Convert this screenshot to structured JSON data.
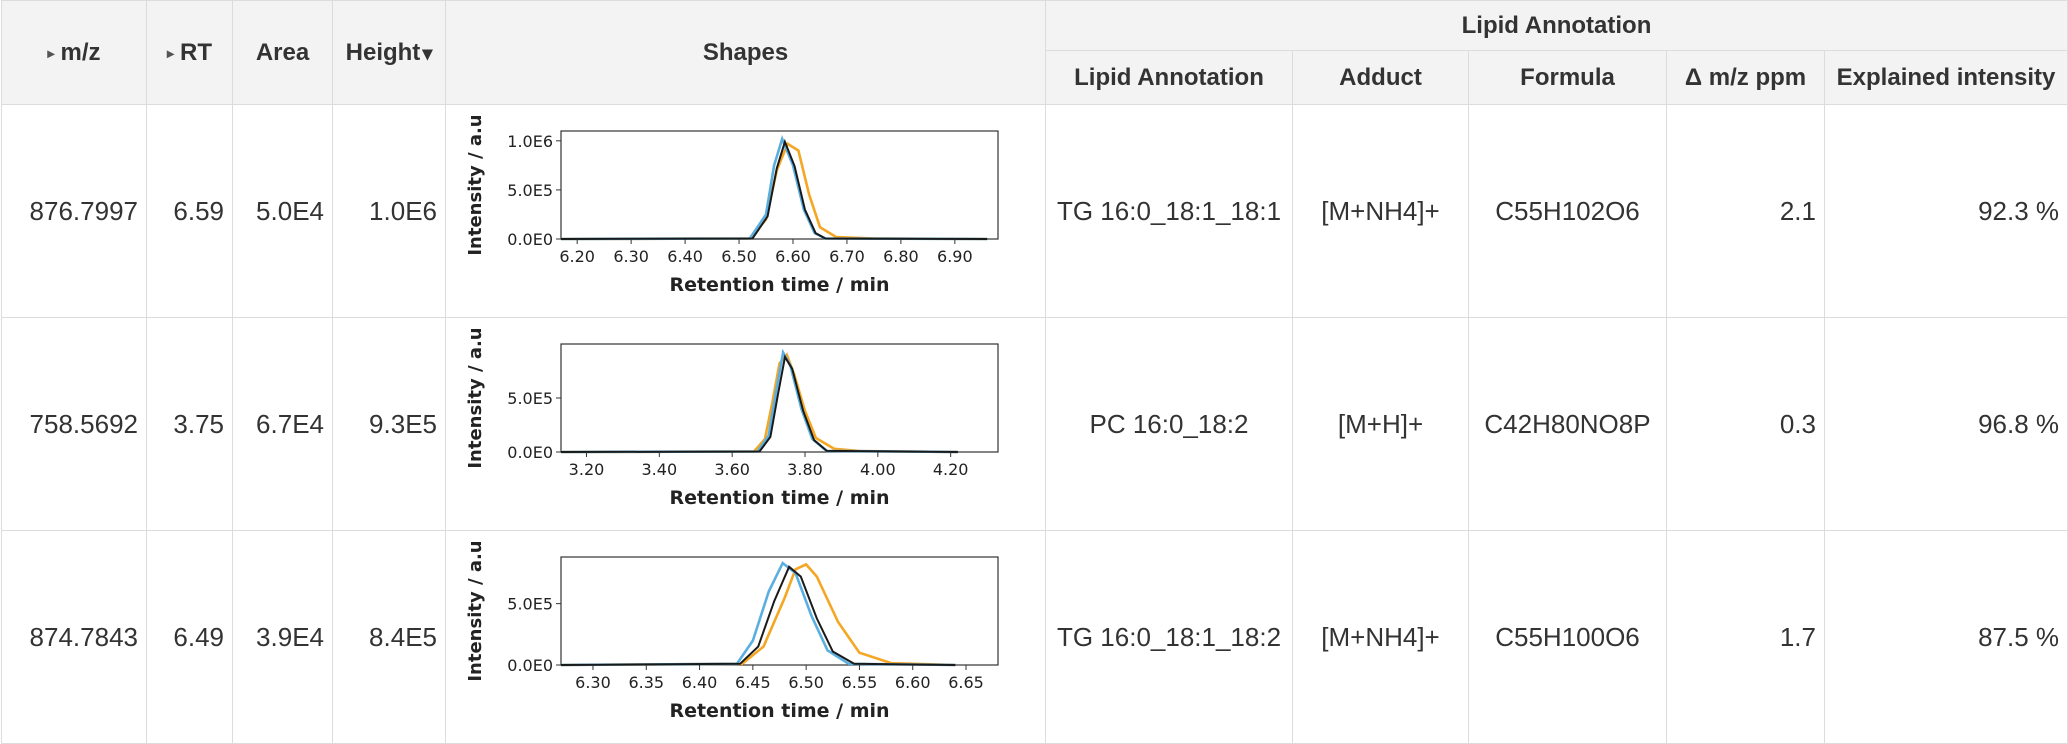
{
  "columns": {
    "mz": "m/z",
    "rt": "RT",
    "area": "Area",
    "height": "Height",
    "shapes": "Shapes",
    "group": "Lipid Annotation",
    "lipid": "Lipid Annotation",
    "adduct": "Adduct",
    "formula": "Formula",
    "ppm": "Δ m/z ppm",
    "explained": "Explained intensity"
  },
  "icons": {
    "expand": "triangle-right-icon",
    "sort": "sort-descending-icon"
  },
  "rows": [
    {
      "mz": "876.7997",
      "rt": "6.59",
      "area": "5.0E4",
      "height": "1.0E6",
      "lipid": "TG 16:0_18:1_18:1",
      "adduct": "[M+NH4]+",
      "formula": "C55H102O6",
      "ppm": "2.1",
      "explained": "92.3 %"
    },
    {
      "mz": "758.5692",
      "rt": "3.75",
      "area": "6.7E4",
      "height": "9.3E5",
      "lipid": "PC 16:0_18:2",
      "adduct": "[M+H]+",
      "formula": "C42H80NO8P",
      "ppm": "0.3",
      "explained": "96.8 %"
    },
    {
      "mz": "874.7843",
      "rt": "6.49",
      "area": "3.9E4",
      "height": "8.4E5",
      "lipid": "TG 16:0_18:1_18:2",
      "adduct": "[M+NH4]+",
      "formula": "C55H100O6",
      "ppm": "1.7",
      "explained": "87.5 %"
    }
  ],
  "chart_data": [
    {
      "type": "line",
      "xlabel": "Retention time / min",
      "ylabel": "Intensity / a.u",
      "xlim": [
        6.17,
        6.98
      ],
      "ylim": [
        0,
        1100000
      ],
      "xticks": [
        "6.20",
        "6.30",
        "6.40",
        "6.50",
        "6.60",
        "6.70",
        "6.80",
        "6.90"
      ],
      "yticks": [
        "0.0E0",
        "5.0E5",
        "1.0E6"
      ],
      "series": [
        {
          "color": "#f5a623",
          "x": [
            6.17,
            6.52,
            6.55,
            6.57,
            6.59,
            6.61,
            6.63,
            6.65,
            6.68,
            6.75,
            6.96
          ],
          "y": [
            0,
            5000,
            200000,
            700000,
            970000,
            900000,
            450000,
            120000,
            20000,
            5000,
            0
          ]
        },
        {
          "color": "#5aafe0",
          "x": [
            6.17,
            6.52,
            6.55,
            6.565,
            6.58,
            6.6,
            6.62,
            6.64,
            6.66,
            6.96
          ],
          "y": [
            0,
            5000,
            250000,
            750000,
            1020000,
            750000,
            300000,
            60000,
            5000,
            0
          ]
        },
        {
          "color": "#1a1a1a",
          "x": [
            6.17,
            6.525,
            6.553,
            6.57,
            6.585,
            6.603,
            6.622,
            6.642,
            6.66,
            6.96
          ],
          "y": [
            0,
            5000,
            230000,
            720000,
            990000,
            740000,
            300000,
            60000,
            5000,
            0
          ]
        }
      ]
    },
    {
      "type": "line",
      "xlabel": "Retention time / min",
      "ylabel": "Intensity / a.u",
      "xlim": [
        3.13,
        4.33
      ],
      "ylim": [
        0,
        1000000
      ],
      "xticks": [
        "3.20",
        "3.40",
        "3.60",
        "3.80",
        "4.00",
        "4.20"
      ],
      "yticks": [
        "0.0E0",
        "5.0E5"
      ],
      "series": [
        {
          "color": "#f5a623",
          "x": [
            3.13,
            3.66,
            3.69,
            3.71,
            3.73,
            3.75,
            3.77,
            3.8,
            3.83,
            3.88,
            3.95,
            4.22
          ],
          "y": [
            0,
            5000,
            120000,
            450000,
            820000,
            900000,
            720000,
            380000,
            130000,
            30000,
            8000,
            0
          ]
        },
        {
          "color": "#5aafe0",
          "x": [
            3.13,
            3.67,
            3.7,
            3.72,
            3.74,
            3.76,
            3.79,
            3.82,
            3.86,
            4.22
          ],
          "y": [
            0,
            5000,
            150000,
            550000,
            920000,
            800000,
            400000,
            120000,
            10000,
            0
          ]
        },
        {
          "color": "#1a1a1a",
          "x": [
            3.13,
            3.675,
            3.705,
            3.725,
            3.745,
            3.765,
            3.795,
            3.825,
            3.86,
            4.22
          ],
          "y": [
            0,
            5000,
            140000,
            520000,
            880000,
            770000,
            380000,
            110000,
            10000,
            0
          ]
        }
      ]
    },
    {
      "type": "line",
      "xlabel": "Retention time / min",
      "ylabel": "Intensity / a.u",
      "xlim": [
        6.27,
        6.68
      ],
      "ylim": [
        0,
        880000
      ],
      "xticks": [
        "6.30",
        "6.35",
        "6.40",
        "6.45",
        "6.50",
        "6.55",
        "6.60",
        "6.65"
      ],
      "yticks": [
        "0.0E0",
        "5.0E5"
      ],
      "series": [
        {
          "color": "#f5a623",
          "x": [
            6.27,
            6.44,
            6.46,
            6.48,
            6.49,
            6.5,
            6.51,
            6.53,
            6.55,
            6.58,
            6.64
          ],
          "y": [
            0,
            10000,
            150000,
            550000,
            780000,
            820000,
            720000,
            350000,
            100000,
            15000,
            0
          ]
        },
        {
          "color": "#5aafe0",
          "x": [
            6.27,
            6.435,
            6.45,
            6.465,
            6.478,
            6.49,
            6.505,
            6.52,
            6.54,
            6.64
          ],
          "y": [
            0,
            10000,
            200000,
            600000,
            830000,
            750000,
            400000,
            120000,
            10000,
            0
          ]
        },
        {
          "color": "#1a1a1a",
          "x": [
            6.27,
            6.438,
            6.455,
            6.47,
            6.484,
            6.495,
            6.51,
            6.525,
            6.545,
            6.64
          ],
          "y": [
            0,
            10000,
            150000,
            520000,
            800000,
            720000,
            380000,
            110000,
            10000,
            0
          ]
        }
      ]
    }
  ]
}
